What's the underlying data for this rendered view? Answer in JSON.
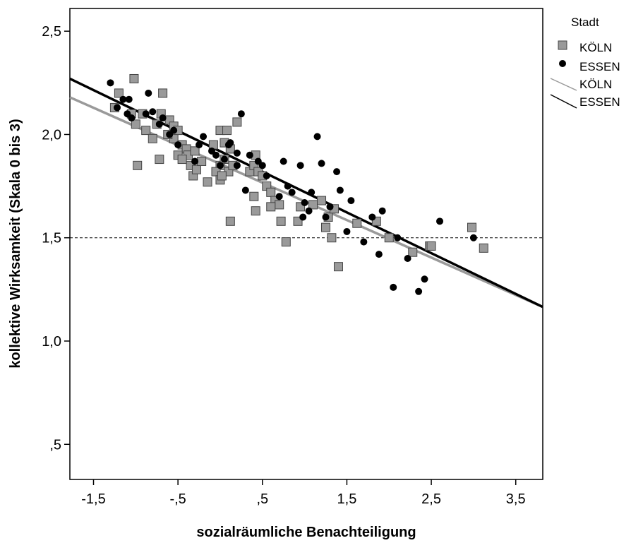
{
  "chart_data": {
    "type": "scatter",
    "xlabel": "sozialräumliche Benachteiligung",
    "ylabel": "kollektive Wirksamkeit (Skala 0 bis 3)",
    "xlim": [
      -1.78,
      3.82
    ],
    "ylim": [
      0.33,
      2.61
    ],
    "x_ticks": [
      {
        "value": -1.5,
        "label": "-1,5"
      },
      {
        "value": -0.5,
        "label": "-,5"
      },
      {
        "value": 0.5,
        "label": ",5"
      },
      {
        "value": 1.5,
        "label": "1,5"
      },
      {
        "value": 2.5,
        "label": "2,5"
      },
      {
        "value": 3.5,
        "label": "3,5"
      }
    ],
    "y_ticks": [
      {
        "value": 0.5,
        "label": ",5"
      },
      {
        "value": 1.0,
        "label": "1,0"
      },
      {
        "value": 1.5,
        "label": "1,5"
      },
      {
        "value": 2.0,
        "label": "2,0"
      },
      {
        "value": 2.5,
        "label": "2,5"
      }
    ],
    "grid": false,
    "reference_line": {
      "y": 1.5,
      "style": "dashed"
    },
    "legend": {
      "title": "Stadt",
      "position": "right",
      "entries": [
        {
          "label": "KÖLN",
          "kind": "marker",
          "marker": "square",
          "color": "#9a9a9a"
        },
        {
          "label": "ESSEN",
          "kind": "marker",
          "marker": "circle",
          "color": "#000000"
        },
        {
          "label": "KÖLN",
          "kind": "line",
          "color": "#9a9a9a"
        },
        {
          "label": "ESSEN",
          "kind": "line",
          "color": "#000000"
        }
      ]
    },
    "series": [
      {
        "name": "KÖLN",
        "marker": "square",
        "color": "#9a9a9a",
        "fit_line": {
          "x": [
            -1.78,
            3.82
          ],
          "y": [
            2.18,
            1.165
          ]
        },
        "points": [
          [
            -1.02,
            2.27
          ],
          [
            -1.25,
            2.13
          ],
          [
            -1.2,
            2.2
          ],
          [
            -1.05,
            2.1
          ],
          [
            -1.0,
            2.05
          ],
          [
            -0.92,
            2.1
          ],
          [
            -0.88,
            2.02
          ],
          [
            -0.8,
            1.98
          ],
          [
            -0.75,
            2.05
          ],
          [
            -0.7,
            2.1
          ],
          [
            -0.68,
            2.2
          ],
          [
            -0.6,
            2.07
          ],
          [
            -0.55,
            1.98
          ],
          [
            -0.55,
            2.04
          ],
          [
            -0.5,
            2.02
          ],
          [
            -0.45,
            1.95
          ],
          [
            -0.4,
            1.93
          ],
          [
            -0.38,
            1.9
          ],
          [
            -0.35,
            1.85
          ],
          [
            -0.32,
            1.8
          ],
          [
            -0.28,
            1.83
          ],
          [
            -0.22,
            1.87
          ],
          [
            -0.15,
            1.77
          ],
          [
            -0.98,
            1.85
          ],
          [
            -0.72,
            1.88
          ],
          [
            -0.62,
            2.0
          ],
          [
            -0.5,
            1.9
          ],
          [
            -0.45,
            1.88
          ],
          [
            -0.3,
            1.92
          ],
          [
            0.0,
            1.85
          ],
          [
            0.05,
            1.88
          ],
          [
            0.1,
            1.82
          ],
          [
            0.12,
            1.93
          ],
          [
            0.15,
            1.85
          ],
          [
            0.0,
            2.02
          ],
          [
            0.05,
            1.96
          ],
          [
            0.08,
            2.02
          ],
          [
            0.2,
            2.06
          ],
          [
            -0.08,
            1.95
          ],
          [
            -0.05,
            1.82
          ],
          [
            0.0,
            1.78
          ],
          [
            0.02,
            1.8
          ],
          [
            0.35,
            1.82
          ],
          [
            0.4,
            1.85
          ],
          [
            0.42,
            1.9
          ],
          [
            0.45,
            1.82
          ],
          [
            0.5,
            1.8
          ],
          [
            0.55,
            1.75
          ],
          [
            0.6,
            1.72
          ],
          [
            0.65,
            1.68
          ],
          [
            0.7,
            1.66
          ],
          [
            0.4,
            1.7
          ],
          [
            0.42,
            1.63
          ],
          [
            0.6,
            1.65
          ],
          [
            0.72,
            1.58
          ],
          [
            0.78,
            1.48
          ],
          [
            0.92,
            1.58
          ],
          [
            0.95,
            1.65
          ],
          [
            1.1,
            1.66
          ],
          [
            1.2,
            1.68
          ],
          [
            1.25,
            1.55
          ],
          [
            1.28,
            1.6
          ],
          [
            1.32,
            1.5
          ],
          [
            1.35,
            1.64
          ],
          [
            1.4,
            1.36
          ],
          [
            1.62,
            1.57
          ],
          [
            1.85,
            1.58
          ],
          [
            2.0,
            1.5
          ],
          [
            2.28,
            1.43
          ],
          [
            2.48,
            1.46
          ],
          [
            2.5,
            1.46
          ],
          [
            2.98,
            1.55
          ],
          [
            3.12,
            1.45
          ],
          [
            0.12,
            1.58
          ]
        ]
      },
      {
        "name": "ESSEN",
        "marker": "circle",
        "color": "#000000",
        "fit_line": {
          "x": [
            -1.78,
            3.82
          ],
          "y": [
            2.27,
            1.165
          ]
        },
        "points": [
          [
            -1.3,
            2.25
          ],
          [
            -1.22,
            2.13
          ],
          [
            -1.15,
            2.17
          ],
          [
            -1.1,
            2.1
          ],
          [
            -1.08,
            2.17
          ],
          [
            -1.05,
            2.08
          ],
          [
            -0.88,
            2.1
          ],
          [
            -0.85,
            2.2
          ],
          [
            -0.8,
            2.11
          ],
          [
            -0.72,
            2.05
          ],
          [
            -0.68,
            2.08
          ],
          [
            -0.6,
            2.0
          ],
          [
            -0.55,
            2.02
          ],
          [
            -0.5,
            1.95
          ],
          [
            -0.3,
            1.87
          ],
          [
            -0.25,
            1.95
          ],
          [
            -0.2,
            1.99
          ],
          [
            -0.1,
            1.92
          ],
          [
            -0.05,
            1.9
          ],
          [
            0.0,
            1.85
          ],
          [
            0.05,
            1.88
          ],
          [
            0.1,
            1.95
          ],
          [
            0.12,
            1.96
          ],
          [
            0.2,
            1.91
          ],
          [
            0.25,
            2.1
          ],
          [
            0.3,
            1.73
          ],
          [
            0.35,
            1.9
          ],
          [
            0.45,
            1.87
          ],
          [
            0.5,
            1.85
          ],
          [
            0.55,
            1.8
          ],
          [
            0.7,
            1.7
          ],
          [
            0.75,
            1.87
          ],
          [
            0.8,
            1.75
          ],
          [
            0.85,
            1.72
          ],
          [
            0.95,
            1.85
          ],
          [
            1.0,
            1.67
          ],
          [
            1.05,
            1.63
          ],
          [
            1.08,
            1.72
          ],
          [
            1.15,
            1.99
          ],
          [
            1.2,
            1.86
          ],
          [
            1.25,
            1.6
          ],
          [
            1.3,
            1.65
          ],
          [
            1.38,
            1.82
          ],
          [
            1.5,
            1.53
          ],
          [
            1.55,
            1.68
          ],
          [
            1.7,
            1.48
          ],
          [
            1.8,
            1.6
          ],
          [
            1.88,
            1.42
          ],
          [
            1.92,
            1.63
          ],
          [
            2.05,
            1.26
          ],
          [
            2.1,
            1.5
          ],
          [
            2.22,
            1.4
          ],
          [
            2.35,
            1.24
          ],
          [
            2.42,
            1.3
          ],
          [
            2.6,
            1.58
          ],
          [
            3.0,
            1.5
          ],
          [
            0.98,
            1.6
          ],
          [
            1.42,
            1.73
          ],
          [
            0.2,
            1.85
          ]
        ]
      }
    ]
  }
}
